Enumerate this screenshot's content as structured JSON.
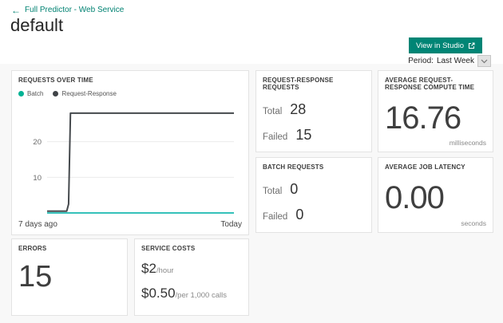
{
  "header": {
    "back_arrow": "←",
    "breadcrumb": "Full Predictor - Web Service",
    "title": "default",
    "view_in_studio_label": "View in Studio",
    "period_label": "Period:",
    "period_value": "Last Week"
  },
  "colors": {
    "accent_teal": "#008272",
    "button_bg": "#008575",
    "batch_line": "#35c1ba",
    "request_response_line": "#45494d",
    "card_border": "#e3e3e3",
    "page_bg": "#f8f8f8"
  },
  "cards": {
    "requests_over_time": {
      "title": "REQUESTS OVER TIME"
    },
    "rr_requests": {
      "title": "REQUEST-RESPONSE REQUESTS",
      "total_label": "Total",
      "total_value": "28",
      "failed_label": "Failed",
      "failed_value": "15"
    },
    "avg_compute": {
      "title": "AVERAGE REQUEST-RESPONSE COMPUTE TIME",
      "value": "16.76",
      "unit": "milliseconds"
    },
    "batch_requests": {
      "title": "BATCH REQUESTS",
      "total_label": "Total",
      "total_value": "0",
      "failed_label": "Failed",
      "failed_value": "0"
    },
    "avg_job_latency": {
      "title": "AVERAGE JOB LATENCY",
      "value": "0.00",
      "unit": "seconds"
    },
    "errors": {
      "title": "ERRORS",
      "value": "15"
    },
    "service_costs": {
      "title": "SERVICE COSTS",
      "hourly_value": "$2",
      "hourly_unit": "/hour",
      "per_call_value": "$0.50",
      "per_call_unit": "/per 1,000 calls"
    }
  },
  "chart_data": {
    "type": "line",
    "title": "REQUESTS OVER TIME",
    "x_start_label": "7 days ago",
    "x_end_label": "Today",
    "xlabel": "",
    "ylabel": "",
    "ylim": [
      0,
      30
    ],
    "yticks": [
      10,
      20
    ],
    "grid": true,
    "legend_position": "top-left",
    "series": [
      {
        "name": "Batch",
        "color": "#35c1ba",
        "dot_color": "#00b294",
        "points": [
          [
            0,
            0
          ],
          [
            1,
            0
          ]
        ]
      },
      {
        "name": "Request-Response",
        "color": "#45494d",
        "dot_color": "#404448",
        "points": [
          [
            0,
            0.5
          ],
          [
            0.105,
            0.5
          ],
          [
            0.115,
            2.5
          ],
          [
            0.125,
            28
          ],
          [
            1,
            28
          ]
        ]
      }
    ]
  }
}
